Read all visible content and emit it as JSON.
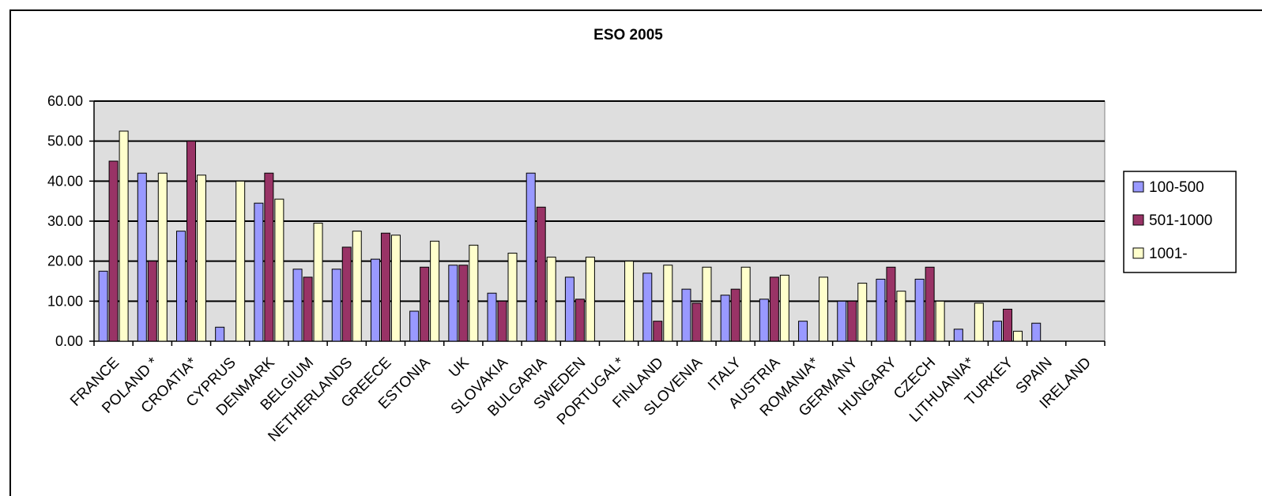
{
  "chart_data": {
    "type": "bar",
    "title": "ESO 2005",
    "xlabel": "",
    "ylabel": "",
    "ylim": [
      0,
      60
    ],
    "yticks": [
      "0.00",
      "10.00",
      "20.00",
      "30.00",
      "40.00",
      "50.00",
      "60.00"
    ],
    "grid": true,
    "legend_position": "right",
    "categories": [
      "FRANCE",
      "POLAND *",
      "CROATIA*",
      "CYPRUS",
      "DENMARK",
      "BELGIUM",
      "NETHERLANDS",
      "GREECE",
      "ESTONIA",
      "UK",
      "SLOVAKIA",
      "BULGARIA",
      "SWEDEN",
      "PORTUGAL*",
      "FINLAND",
      "SLOVENIA",
      "ITALY",
      "AUSTRIA",
      "ROMANIA*",
      "GERMANY",
      "HUNGARY",
      "CZECH",
      "LITHUANIA*",
      "TURKEY",
      "SPAIN",
      "IRELAND"
    ],
    "series": [
      {
        "name": "100-500",
        "color": "#9999ff",
        "values": [
          17.5,
          42,
          27.5,
          3.5,
          34.5,
          18,
          18,
          20.5,
          7.5,
          19,
          12,
          42,
          16,
          0,
          17,
          13,
          11.5,
          10.5,
          5,
          10,
          15.5,
          15.5,
          3,
          5,
          4.5,
          0
        ]
      },
      {
        "name": "501-1000",
        "color": "#993366",
        "values": [
          45,
          20,
          50,
          0,
          42,
          16,
          23.5,
          27,
          18.5,
          19,
          10,
          33.5,
          10.5,
          0,
          5,
          9.5,
          13,
          16,
          0,
          10,
          18.5,
          18.5,
          0,
          8,
          0,
          0
        ]
      },
      {
        "name": "1001-",
        "color": "#ffffcc",
        "values": [
          52.5,
          42,
          41.5,
          40,
          35.5,
          29.5,
          27.5,
          26.5,
          25,
          24,
          22,
          21,
          21,
          20,
          19,
          18.5,
          18.5,
          16.5,
          16,
          14.5,
          12.5,
          10,
          9.5,
          2.5,
          0,
          0
        ]
      }
    ]
  }
}
